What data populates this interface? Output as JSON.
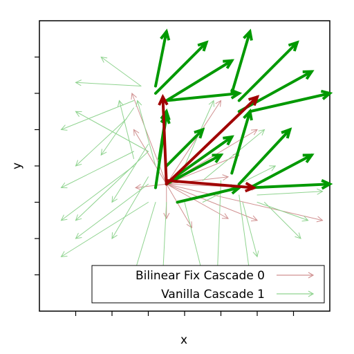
{
  "chart_data": {
    "type": "vector-field",
    "xlabel": "x",
    "ylabel": "y",
    "xlim": [
      0,
      8
    ],
    "ylim": [
      0,
      8
    ],
    "grid": false,
    "legend_position": "bottom-right",
    "colors": {
      "series_1": "#d09090",
      "series_2": "#8fd38f",
      "highlight_green": "#009900",
      "highlight_red": "#a00000"
    },
    "legend": [
      {
        "label": "Bilinear Fix Cascade 0",
        "color": "#d09090"
      },
      {
        "label": "Vanilla Cascade 1",
        "color": "#8fd38f"
      }
    ],
    "series": [
      {
        "name": "Bilinear Fix Cascade 0",
        "segments": [
          [
            3.5,
            3.5,
            2.55,
            6.0
          ],
          [
            3.5,
            3.5,
            6.0,
            5.0
          ],
          [
            3.5,
            3.5,
            2.6,
            5.0
          ],
          [
            3.5,
            3.5,
            5.0,
            5.8
          ],
          [
            3.5,
            3.5,
            2.65,
            3.4
          ],
          [
            3.5,
            3.5,
            3.5,
            2.55
          ],
          [
            3.5,
            3.5,
            5.2,
            2.55
          ],
          [
            3.5,
            3.5,
            4.2,
            2.3
          ],
          [
            3.5,
            3.5,
            5.2,
            3.7
          ],
          [
            3.5,
            3.5,
            5.5,
            4.3
          ],
          [
            3.5,
            3.5,
            6.0,
            2.5
          ],
          [
            3.5,
            3.5,
            7.8,
            2.5
          ],
          [
            3.5,
            3.5,
            6.0,
            3.4
          ]
        ]
      },
      {
        "name": "Vanilla Cascade 1",
        "segments": [
          [
            2.8,
            6.2,
            1.7,
            7.0
          ],
          [
            2.8,
            6.2,
            1.0,
            6.3
          ],
          [
            2.6,
            5.8,
            0.6,
            5.0
          ],
          [
            2.6,
            5.6,
            1.7,
            4.3
          ],
          [
            2.4,
            5.3,
            1.0,
            4.0
          ],
          [
            2.6,
            4.4,
            0.6,
            3.4
          ],
          [
            3.0,
            4.6,
            2.0,
            3.0
          ],
          [
            3.0,
            4.4,
            1.0,
            2.5
          ],
          [
            2.6,
            4.0,
            0.6,
            2.5
          ],
          [
            3.0,
            3.7,
            2.0,
            2.0
          ],
          [
            3.0,
            3.5,
            1.0,
            2.0
          ],
          [
            3.0,
            3.0,
            0.6,
            1.5
          ],
          [
            3.2,
            3.0,
            2.6,
            1.0
          ],
          [
            3.5,
            3.0,
            3.4,
            1.0
          ],
          [
            4.0,
            3.0,
            4.5,
            1.0
          ],
          [
            3.0,
            4.4,
            1.0,
            5.5
          ],
          [
            3.2,
            4.0,
            2.7,
            5.8
          ],
          [
            2.6,
            4.2,
            2.2,
            5.8
          ],
          [
            4.0,
            4.0,
            4.8,
            5.8
          ],
          [
            4.5,
            3.6,
            6.2,
            5.0
          ],
          [
            4.5,
            3.0,
            6.5,
            4.0
          ],
          [
            5.0,
            3.6,
            4.9,
            1.0
          ],
          [
            5.5,
            3.2,
            5.8,
            1.0
          ],
          [
            6.0,
            3.2,
            7.8,
            3.3
          ],
          [
            6.0,
            3.0,
            7.4,
            2.5
          ],
          [
            5.6,
            3.0,
            6.0,
            1.5
          ],
          [
            6.2,
            3.0,
            7.2,
            2.0
          ]
        ]
      }
    ],
    "highlighted_vectors": [
      {
        "color": "green",
        "segments": [
          [
            3.2,
            6.2,
            3.5,
            7.7
          ],
          [
            3.2,
            6.0,
            4.6,
            7.4
          ],
          [
            3.5,
            5.8,
            5.3,
            6.9
          ],
          [
            3.5,
            5.8,
            5.5,
            6.0
          ],
          [
            5.3,
            6.0,
            5.8,
            7.7
          ],
          [
            5.5,
            5.8,
            7.1,
            7.4
          ],
          [
            5.5,
            5.5,
            7.5,
            6.6
          ],
          [
            5.8,
            5.5,
            8.0,
            6.0
          ],
          [
            3.3,
            4.2,
            3.5,
            5.5
          ],
          [
            3.5,
            4.0,
            4.5,
            5.0
          ],
          [
            3.5,
            3.5,
            5.0,
            4.3
          ],
          [
            3.6,
            3.6,
            5.3,
            4.8
          ],
          [
            5.3,
            3.8,
            5.8,
            5.5
          ],
          [
            5.5,
            3.5,
            6.9,
            5.0
          ],
          [
            5.8,
            3.4,
            7.5,
            4.3
          ],
          [
            5.8,
            3.4,
            8.0,
            3.5
          ],
          [
            3.8,
            3.0,
            5.5,
            3.4
          ],
          [
            3.2,
            3.4,
            3.5,
            5.4
          ]
        ]
      },
      {
        "color": "red",
        "segments": [
          [
            3.5,
            3.5,
            3.4,
            5.9
          ],
          [
            3.5,
            3.5,
            6.0,
            5.9
          ],
          [
            3.5,
            3.6,
            5.9,
            3.4
          ]
        ]
      }
    ],
    "xtick_count": 8,
    "ytick_count": 8
  }
}
